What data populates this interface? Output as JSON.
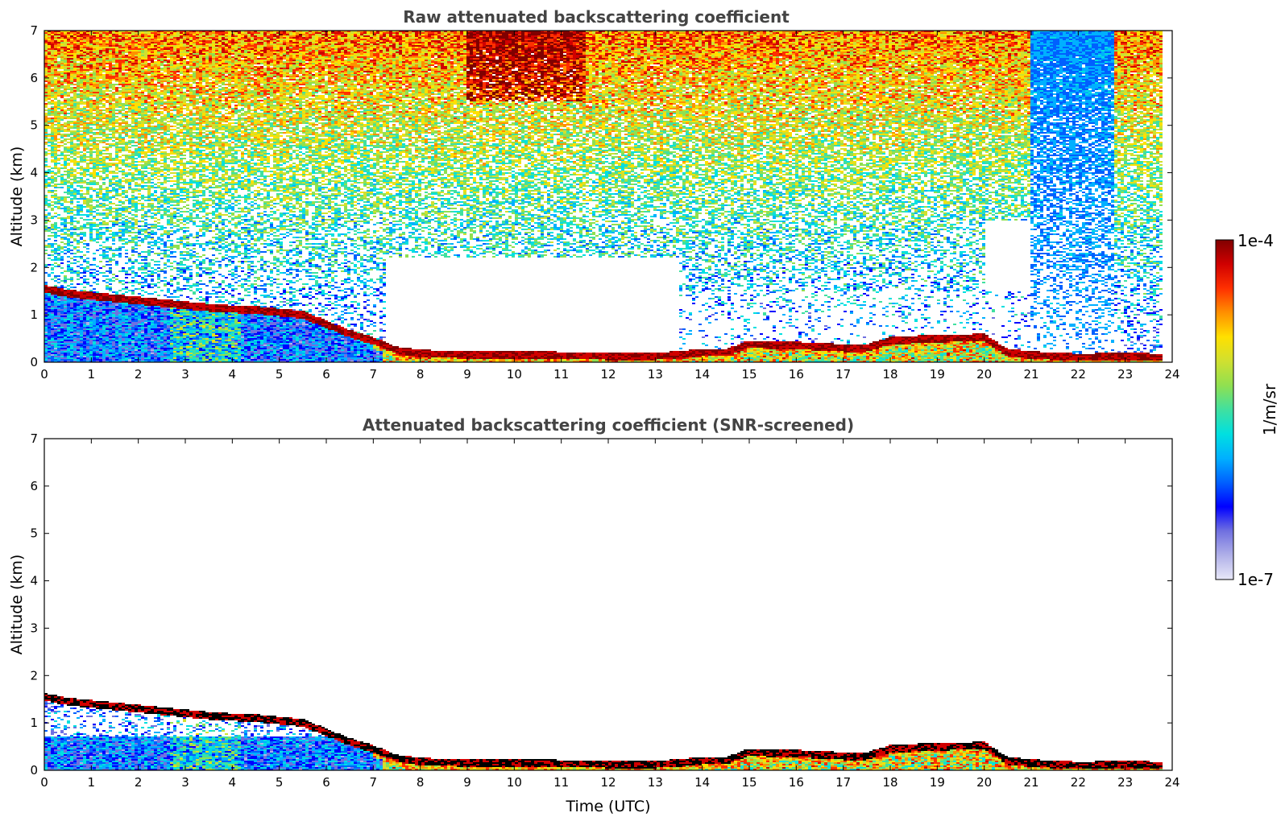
{
  "chart_data": [
    {
      "type": "heatmap",
      "title": "Raw attenuated backscattering coefficient",
      "xlabel": "",
      "ylabel": "Altitude (km)",
      "xlim": [
        0,
        24
      ],
      "ylim": [
        0,
        7
      ],
      "xticks": [
        0,
        1,
        2,
        3,
        4,
        5,
        6,
        7,
        8,
        9,
        10,
        11,
        12,
        13,
        14,
        15,
        16,
        17,
        18,
        19,
        20,
        21,
        22,
        23,
        24
      ],
      "yticks": [
        0,
        1,
        2,
        3,
        4,
        5,
        6,
        7
      ],
      "data_end_time": 23.8,
      "cloud_layer": {
        "time": [
          0,
          0.5,
          1,
          1.5,
          2,
          2.5,
          3,
          3.5,
          4,
          4.5,
          5,
          5.5,
          6,
          6.5,
          7,
          7.5,
          8,
          9,
          10,
          11,
          12,
          13,
          13.5,
          14,
          14.5,
          15,
          16,
          17,
          17.5,
          18,
          19,
          20,
          20.5,
          21,
          22,
          23,
          23.8
        ],
        "altitude": [
          1.55,
          1.45,
          1.4,
          1.35,
          1.3,
          1.25,
          1.2,
          1.15,
          1.12,
          1.1,
          1.05,
          1.0,
          0.8,
          0.6,
          0.45,
          0.25,
          0.18,
          0.16,
          0.15,
          0.14,
          0.13,
          0.13,
          0.15,
          0.2,
          0.2,
          0.38,
          0.35,
          0.3,
          0.3,
          0.45,
          0.5,
          0.52,
          0.2,
          0.15,
          0.1,
          0.12,
          0.1
        ]
      },
      "colorbar": {
        "min_label": "1e-7",
        "max_label": "1e-4",
        "label": "1/m/sr"
      }
    },
    {
      "type": "heatmap",
      "title": "Attenuated backscattering coefficient (SNR-screened)",
      "xlabel": "Time (UTC)",
      "ylabel": "Altitude (km)",
      "xlim": [
        0,
        24
      ],
      "ylim": [
        0,
        7
      ],
      "xticks": [
        0,
        1,
        2,
        3,
        4,
        5,
        6,
        7,
        8,
        9,
        10,
        11,
        12,
        13,
        14,
        15,
        16,
        17,
        18,
        19,
        20,
        21,
        22,
        23,
        24
      ],
      "yticks": [
        0,
        1,
        2,
        3,
        4,
        5,
        6,
        7
      ],
      "data_end_time": 23.8
    }
  ],
  "colors": {
    "colormap": [
      "#e8e8f8",
      "#b0b0e8",
      "#7070e0",
      "#0000ff",
      "#0060ff",
      "#00b0ff",
      "#00e0e0",
      "#40e0a0",
      "#90e050",
      "#d0e030",
      "#ffe000",
      "#ff9000",
      "#ff3000",
      "#d00000",
      "#800000"
    ],
    "title_text": "#444444",
    "screened_core": "#000000"
  }
}
